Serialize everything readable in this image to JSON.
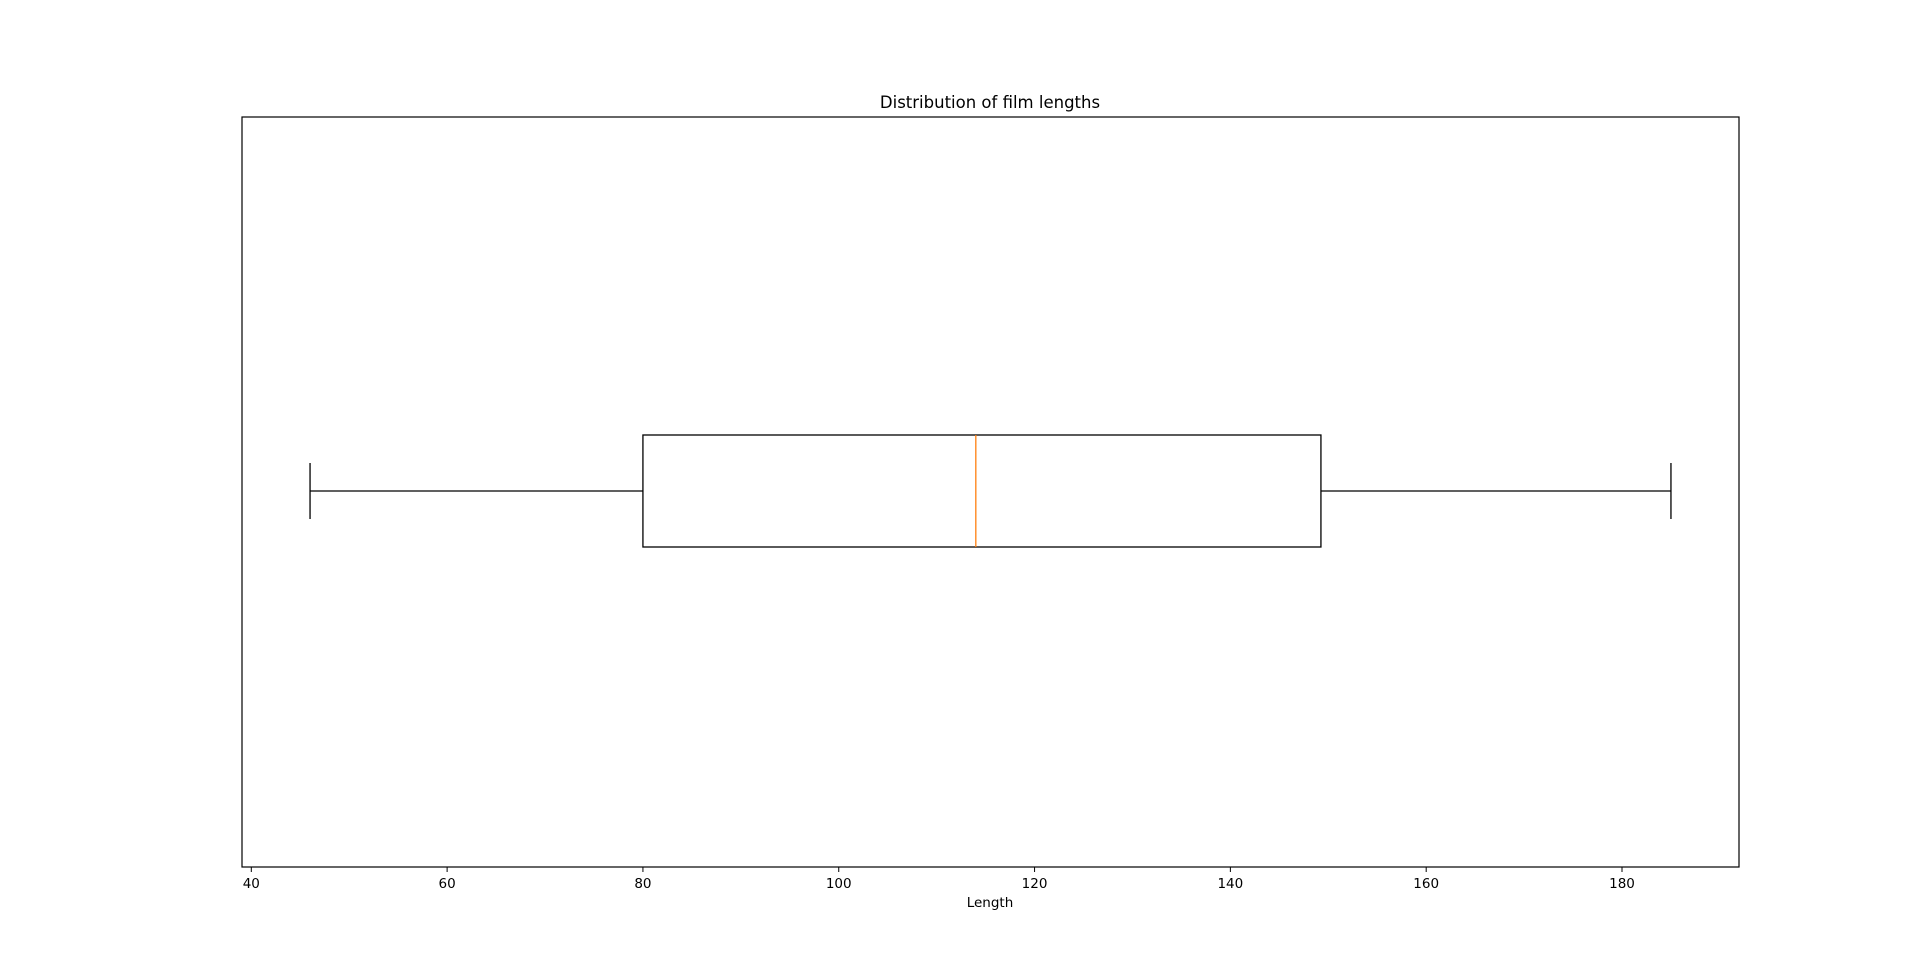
{
  "chart_data": {
    "type": "box",
    "title": "Distribution of film lengths",
    "xlabel": "Length",
    "ylabel": "",
    "orientation": "horizontal",
    "xlim": [
      39.05,
      191.95
    ],
    "xticks": [
      40,
      60,
      80,
      100,
      120,
      140,
      160,
      180
    ],
    "xtick_labels": [
      "40",
      "60",
      "80",
      "100",
      "120",
      "140",
      "160",
      "180"
    ],
    "grid": false,
    "series": [
      {
        "whisker_low": 46,
        "q1": 80,
        "median": 114,
        "q3": 149.25,
        "whisker_high": 185
      }
    ],
    "colors": {
      "box": "#000000",
      "median": "#ff7f0e",
      "axes": "#000000"
    }
  }
}
